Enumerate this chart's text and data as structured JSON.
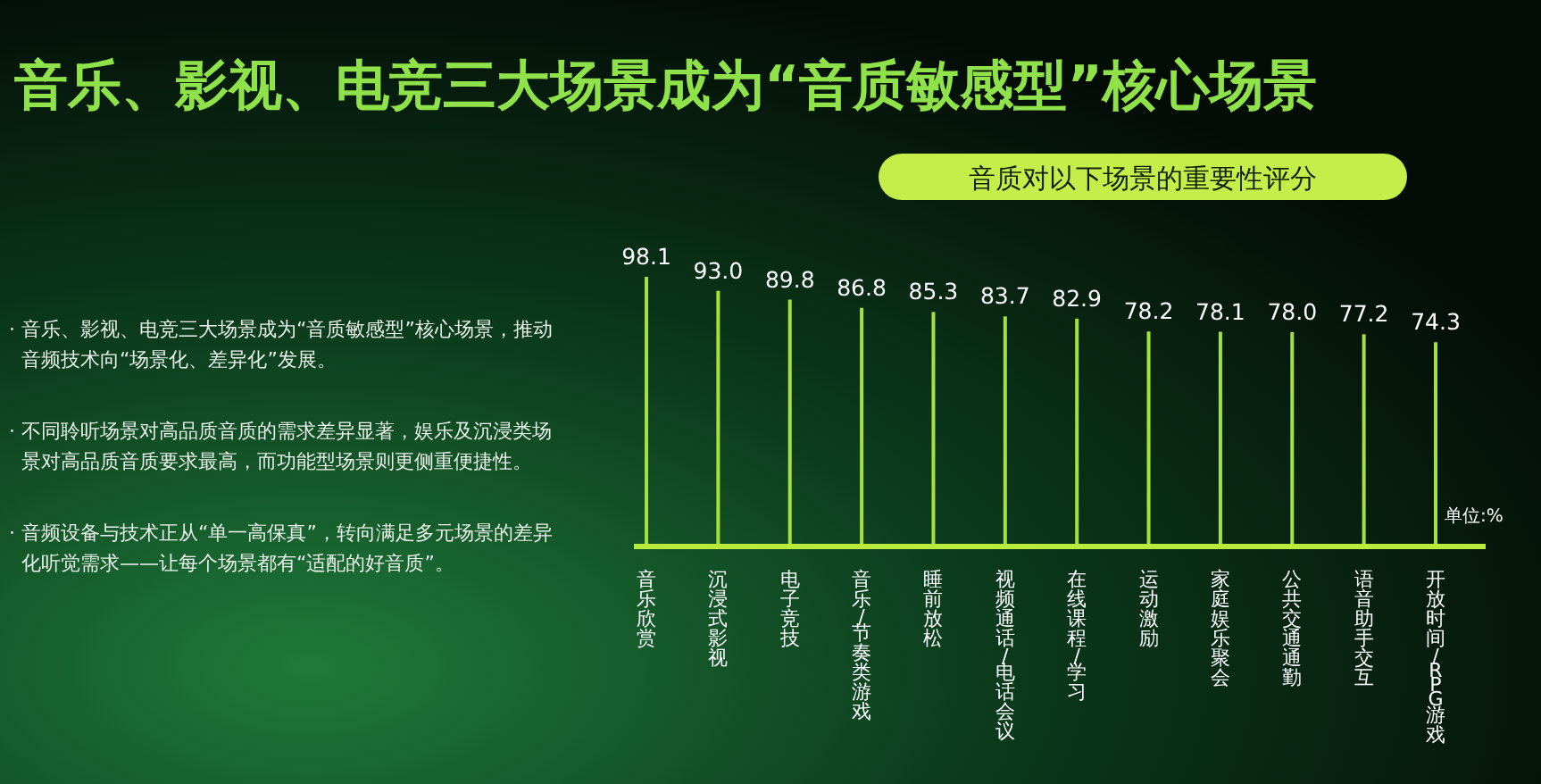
{
  "chart_data": {
    "type": "bar",
    "title": "音乐、影视、电竞三大场景成为“音质敏感型”核心场景",
    "subtitle": "音质对以下场景的重要性评分",
    "categories": [
      "音乐欣赏",
      "沉浸式影视",
      "电子竞技",
      "音乐/节奏类游戏",
      "睡前放松",
      "视频通话/电话会议",
      "在线课程/学习",
      "运动激励",
      "家庭娱乐聚会",
      "公共交通通勤",
      "语音助手交互",
      "开放时间/RPG游戏"
    ],
    "values": [
      98.1,
      93.0,
      89.8,
      86.8,
      85.3,
      83.7,
      82.9,
      78.2,
      78.1,
      78.0,
      77.2,
      74.3
    ],
    "color": "#a6e03c",
    "value_labels": [
      "98.1",
      "93.0",
      "89.8",
      "86.8",
      "85.3",
      "83.7",
      "82.9",
      "78.2",
      "78.1",
      "78.0",
      "77.2",
      "74.3"
    ],
    "annotations": [
      "单位:%",
      "· 音乐、影视、电竞三大场景成为“音质敏感型”核心场景，推动音频技术向“场景化、差异化”发展。",
      "· 不同聆听场景对高品质音质的需求差异显著，娱乐及沉浸类场景对高品质音质要求最高，而功能型场景则更侧重便捷性。",
      "· 音频设备与技术正从“单一高保真”，转向满足多元场景的差异化听觉需求——让每个场景都有“适配的好音质”。"
    ]
  }
}
